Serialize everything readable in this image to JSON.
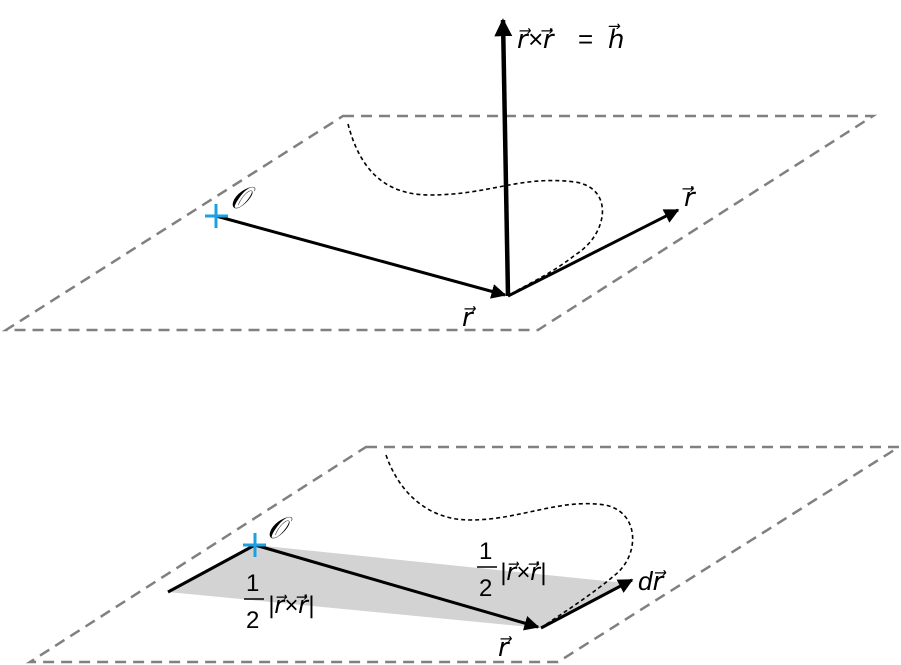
{
  "top": {
    "origin_label": "𝒪",
    "h_label_lhs": "r⃗×ṙ⃗",
    "h_label_eq": "=",
    "h_label_rhs": "h⃗",
    "rdot_label": "ṙ⃗",
    "r_label": "r⃗"
  },
  "bottom": {
    "origin_label": "𝒪",
    "half_num_left": "1",
    "half_den_left": "2",
    "abs_left": "|r⃗×ṙ⃗|",
    "half_num_right": "1",
    "half_den_right": "2",
    "abs_right": "|r⃗×ṙ⃗|",
    "dr_label": "dr⃗",
    "r_label": "r⃗"
  },
  "colors": {
    "origin": "#1ba1e2",
    "area": "#d3d3d3",
    "plane": "#808080",
    "vector": "#000000"
  }
}
